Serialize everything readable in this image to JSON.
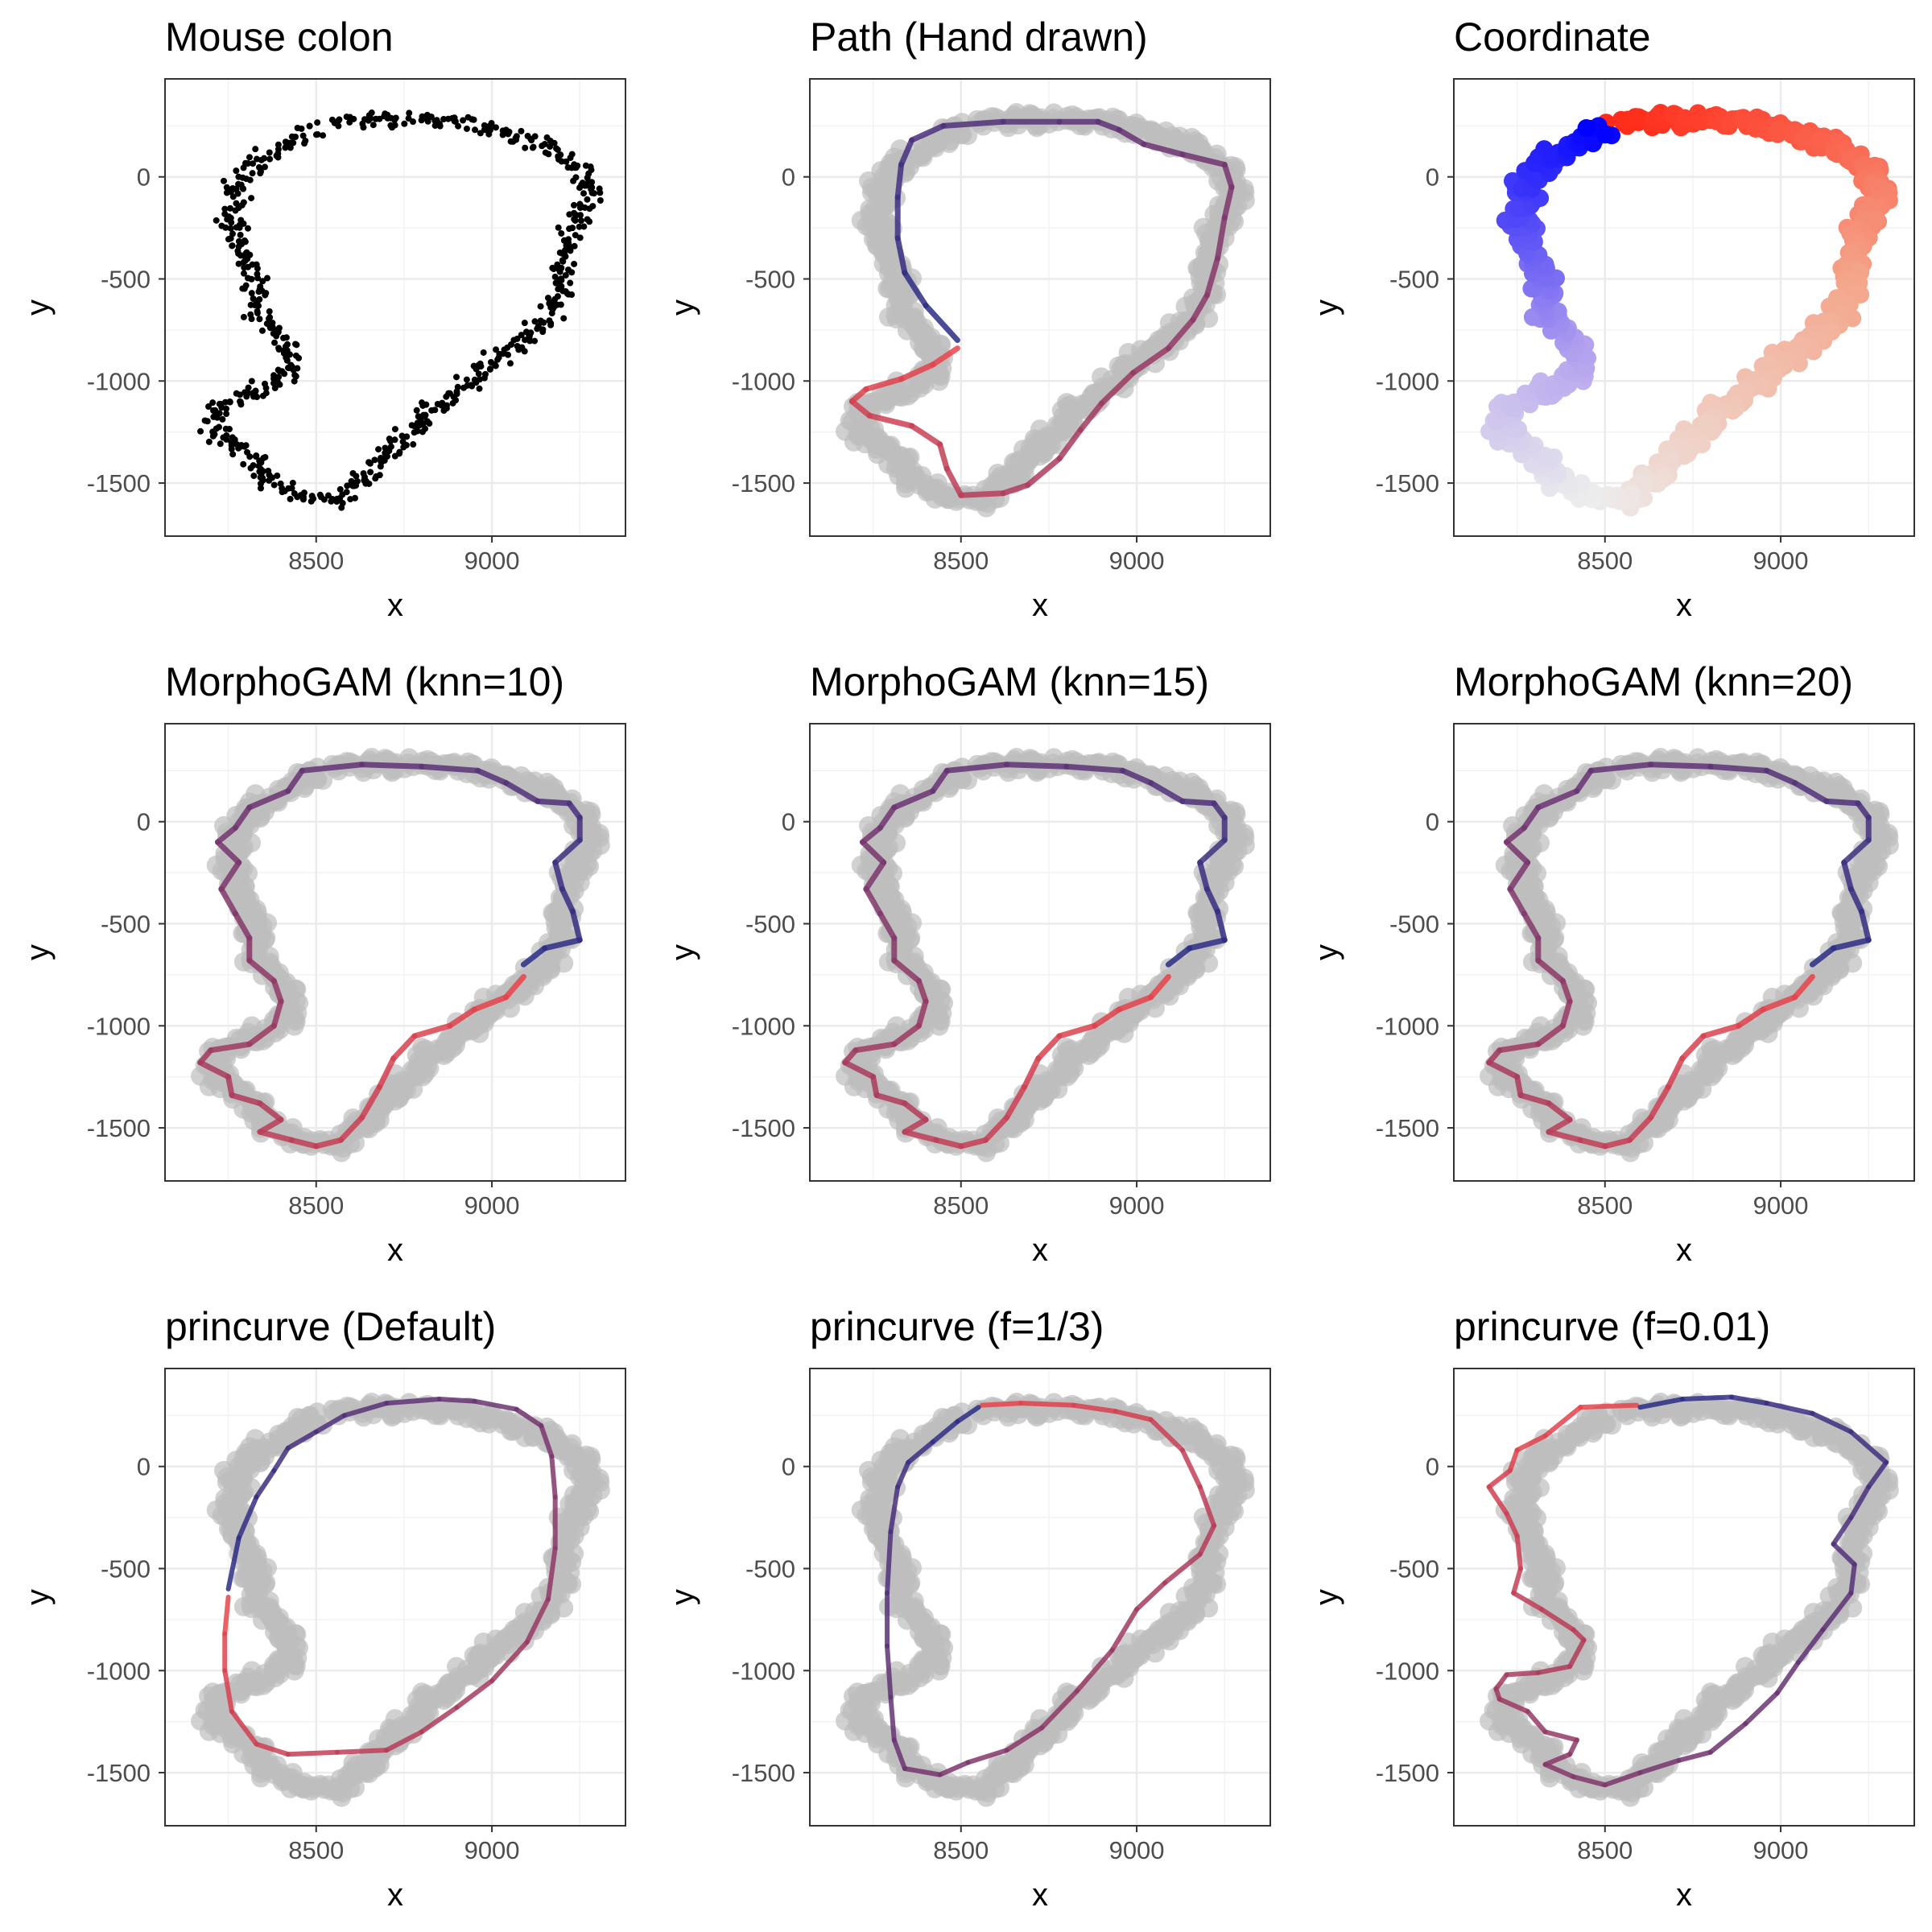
{
  "chart_data": [
    {
      "type": "scatter",
      "title": "Mouse colon",
      "xlabel": "x",
      "ylabel": "y",
      "xlim": [
        8070,
        9380
      ],
      "ylim": [
        -1760,
        480
      ],
      "x_ticks": [
        "8500",
        "9000"
      ],
      "y_ticks": [
        "0",
        "-500",
        "-1000",
        "-1500"
      ],
      "grid": true,
      "series": [
        {
          "kind": "points",
          "color": "#000000",
          "shape": "colon_band"
        }
      ]
    },
    {
      "type": "line",
      "title": "Path (Hand drawn)",
      "xlabel": "x",
      "ylabel": "y",
      "xlim": [
        8070,
        9380
      ],
      "ylim": [
        -1760,
        480
      ],
      "x_ticks": [
        "8500",
        "9000"
      ],
      "y_ticks": [
        "0",
        "-500",
        "-1000",
        "-1500"
      ],
      "grid": true,
      "background_points_color": "#bdbdbd",
      "path_color_start": "#e8434a",
      "path_color_end": "#2b2d86",
      "path": [
        [
          8490,
          -840
        ],
        [
          8420,
          -920
        ],
        [
          8330,
          -990
        ],
        [
          8230,
          -1040
        ],
        [
          8190,
          -1100
        ],
        [
          8240,
          -1170
        ],
        [
          8360,
          -1220
        ],
        [
          8440,
          -1310
        ],
        [
          8460,
          -1430
        ],
        [
          8500,
          -1560
        ],
        [
          8620,
          -1550
        ],
        [
          8690,
          -1510
        ],
        [
          8780,
          -1380
        ],
        [
          8840,
          -1240
        ],
        [
          8900,
          -1110
        ],
        [
          8990,
          -960
        ],
        [
          9090,
          -840
        ],
        [
          9160,
          -700
        ],
        [
          9200,
          -580
        ],
        [
          9230,
          -400
        ],
        [
          9250,
          -200
        ],
        [
          9270,
          -50
        ],
        [
          9250,
          60
        ],
        [
          9130,
          110
        ],
        [
          9020,
          160
        ],
        [
          8950,
          230
        ],
        [
          8890,
          270
        ],
        [
          8780,
          270
        ],
        [
          8620,
          270
        ],
        [
          8450,
          250
        ],
        [
          8360,
          180
        ],
        [
          8330,
          60
        ],
        [
          8320,
          -100
        ],
        [
          8320,
          -300
        ],
        [
          8340,
          -470
        ],
        [
          8400,
          -630
        ],
        [
          8490,
          -800
        ]
      ]
    },
    {
      "type": "scatter",
      "title": "Coordinate",
      "xlabel": "x",
      "ylabel": "y",
      "xlim": [
        8070,
        9380
      ],
      "ylim": [
        -1760,
        480
      ],
      "x_ticks": [
        "8500",
        "9000"
      ],
      "y_ticks": [
        "0",
        "-500",
        "-1000",
        "-1500"
      ],
      "grid": true,
      "color_scale": [
        "#ff2a18",
        "#f4a58a",
        "#ededed",
        "#b3a1ee",
        "#0000ff"
      ]
    },
    {
      "type": "line",
      "title": "MorphoGAM (knn=10)",
      "xlabel": "x",
      "ylabel": "y",
      "xlim": [
        8070,
        9380
      ],
      "ylim": [
        -1760,
        480
      ],
      "x_ticks": [
        "8500",
        "9000"
      ],
      "y_ticks": [
        "0",
        "-500",
        "-1000",
        "-1500"
      ],
      "grid": true,
      "background_points_color": "#bdbdbd",
      "path_color_start": "#e8434a",
      "path_color_end": "#2b2d86",
      "path": [
        [
          9090,
          -760
        ],
        [
          9040,
          -860
        ],
        [
          8950,
          -920
        ],
        [
          8880,
          -1000
        ],
        [
          8780,
          -1050
        ],
        [
          8720,
          -1160
        ],
        [
          8680,
          -1300
        ],
        [
          8630,
          -1450
        ],
        [
          8570,
          -1560
        ],
        [
          8500,
          -1590
        ],
        [
          8430,
          -1560
        ],
        [
          8340,
          -1520
        ],
        [
          8400,
          -1460
        ],
        [
          8340,
          -1380
        ],
        [
          8260,
          -1340
        ],
        [
          8250,
          -1250
        ],
        [
          8170,
          -1180
        ],
        [
          8200,
          -1120
        ],
        [
          8310,
          -1090
        ],
        [
          8380,
          -1000
        ],
        [
          8400,
          -880
        ],
        [
          8380,
          -780
        ],
        [
          8310,
          -680
        ],
        [
          8310,
          -570
        ],
        [
          8270,
          -450
        ],
        [
          8230,
          -330
        ],
        [
          8280,
          -200
        ],
        [
          8220,
          -100
        ],
        [
          8270,
          -30
        ],
        [
          8310,
          70
        ],
        [
          8420,
          150
        ],
        [
          8460,
          250
        ],
        [
          8630,
          280
        ],
        [
          8800,
          270
        ],
        [
          8960,
          250
        ],
        [
          9040,
          190
        ],
        [
          9130,
          100
        ],
        [
          9220,
          90
        ],
        [
          9250,
          20
        ],
        [
          9250,
          -90
        ],
        [
          9180,
          -200
        ],
        [
          9200,
          -330
        ],
        [
          9230,
          -440
        ],
        [
          9250,
          -580
        ],
        [
          9150,
          -620
        ],
        [
          9090,
          -700
        ]
      ]
    },
    {
      "type": "line",
      "title": "MorphoGAM (knn=15)",
      "xlabel": "x",
      "ylabel": "y",
      "xlim": [
        8070,
        9380
      ],
      "ylim": [
        -1760,
        480
      ],
      "x_ticks": [
        "8500",
        "9000"
      ],
      "y_ticks": [
        "0",
        "-500",
        "-1000",
        "-1500"
      ],
      "grid": true,
      "background_points_color": "#bdbdbd",
      "path_color_start": "#e8434a",
      "path_color_end": "#2b2d86",
      "path": [
        [
          9090,
          -760
        ],
        [
          9040,
          -860
        ],
        [
          8950,
          -920
        ],
        [
          8880,
          -1000
        ],
        [
          8780,
          -1050
        ],
        [
          8720,
          -1160
        ],
        [
          8680,
          -1300
        ],
        [
          8630,
          -1450
        ],
        [
          8570,
          -1560
        ],
        [
          8500,
          -1590
        ],
        [
          8430,
          -1560
        ],
        [
          8340,
          -1520
        ],
        [
          8400,
          -1460
        ],
        [
          8340,
          -1380
        ],
        [
          8260,
          -1340
        ],
        [
          8250,
          -1250
        ],
        [
          8170,
          -1180
        ],
        [
          8200,
          -1120
        ],
        [
          8310,
          -1090
        ],
        [
          8380,
          -1000
        ],
        [
          8400,
          -880
        ],
        [
          8380,
          -780
        ],
        [
          8310,
          -680
        ],
        [
          8310,
          -570
        ],
        [
          8270,
          -450
        ],
        [
          8230,
          -330
        ],
        [
          8280,
          -200
        ],
        [
          8220,
          -100
        ],
        [
          8270,
          -30
        ],
        [
          8310,
          70
        ],
        [
          8420,
          150
        ],
        [
          8460,
          250
        ],
        [
          8630,
          280
        ],
        [
          8800,
          270
        ],
        [
          8960,
          250
        ],
        [
          9040,
          190
        ],
        [
          9130,
          100
        ],
        [
          9220,
          90
        ],
        [
          9250,
          20
        ],
        [
          9250,
          -90
        ],
        [
          9180,
          -200
        ],
        [
          9200,
          -330
        ],
        [
          9230,
          -440
        ],
        [
          9250,
          -580
        ],
        [
          9150,
          -620
        ],
        [
          9090,
          -700
        ]
      ]
    },
    {
      "type": "line",
      "title": "MorphoGAM (knn=20)",
      "xlabel": "x",
      "ylabel": "y",
      "xlim": [
        8070,
        9380
      ],
      "ylim": [
        -1760,
        480
      ],
      "x_ticks": [
        "8500",
        "9000"
      ],
      "y_ticks": [
        "0",
        "-500",
        "-1000",
        "-1500"
      ],
      "grid": true,
      "background_points_color": "#bdbdbd",
      "path_color_start": "#e8434a",
      "path_color_end": "#2b2d86",
      "path": [
        [
          9090,
          -760
        ],
        [
          9040,
          -860
        ],
        [
          8950,
          -920
        ],
        [
          8880,
          -1000
        ],
        [
          8780,
          -1050
        ],
        [
          8720,
          -1160
        ],
        [
          8680,
          -1300
        ],
        [
          8630,
          -1450
        ],
        [
          8570,
          -1560
        ],
        [
          8500,
          -1590
        ],
        [
          8430,
          -1560
        ],
        [
          8340,
          -1520
        ],
        [
          8400,
          -1460
        ],
        [
          8340,
          -1380
        ],
        [
          8260,
          -1340
        ],
        [
          8250,
          -1250
        ],
        [
          8170,
          -1180
        ],
        [
          8200,
          -1120
        ],
        [
          8310,
          -1090
        ],
        [
          8380,
          -1000
        ],
        [
          8400,
          -880
        ],
        [
          8380,
          -780
        ],
        [
          8310,
          -680
        ],
        [
          8310,
          -570
        ],
        [
          8270,
          -450
        ],
        [
          8230,
          -330
        ],
        [
          8280,
          -200
        ],
        [
          8220,
          -100
        ],
        [
          8270,
          -30
        ],
        [
          8310,
          70
        ],
        [
          8420,
          150
        ],
        [
          8460,
          250
        ],
        [
          8630,
          280
        ],
        [
          8800,
          270
        ],
        [
          8960,
          250
        ],
        [
          9040,
          190
        ],
        [
          9130,
          100
        ],
        [
          9220,
          90
        ],
        [
          9250,
          20
        ],
        [
          9250,
          -90
        ],
        [
          9180,
          -200
        ],
        [
          9200,
          -330
        ],
        [
          9230,
          -440
        ],
        [
          9250,
          -580
        ],
        [
          9150,
          -620
        ],
        [
          9090,
          -700
        ]
      ]
    },
    {
      "type": "line",
      "title": "princurve (Default)",
      "xlabel": "x",
      "ylabel": "y",
      "xlim": [
        8070,
        9380
      ],
      "ylim": [
        -1760,
        480
      ],
      "x_ticks": [
        "8500",
        "9000"
      ],
      "y_ticks": [
        "0",
        "-500",
        "-1000",
        "-1500"
      ],
      "grid": true,
      "background_points_color": "#bdbdbd",
      "path_color_start": "#e8434a",
      "path_color_end": "#2b2d86",
      "path": [
        [
          8250,
          -640
        ],
        [
          8240,
          -820
        ],
        [
          8240,
          -1000
        ],
        [
          8260,
          -1200
        ],
        [
          8330,
          -1360
        ],
        [
          8420,
          -1410
        ],
        [
          8560,
          -1400
        ],
        [
          8700,
          -1390
        ],
        [
          8800,
          -1300
        ],
        [
          8900,
          -1180
        ],
        [
          9000,
          -1050
        ],
        [
          9100,
          -860
        ],
        [
          9160,
          -650
        ],
        [
          9180,
          -400
        ],
        [
          9180,
          -150
        ],
        [
          9170,
          50
        ],
        [
          9140,
          200
        ],
        [
          9070,
          280
        ],
        [
          8950,
          320
        ],
        [
          8850,
          330
        ],
        [
          8700,
          310
        ],
        [
          8580,
          250
        ],
        [
          8500,
          170
        ],
        [
          8420,
          90
        ],
        [
          8380,
          -20
        ],
        [
          8330,
          -150
        ],
        [
          8280,
          -350
        ],
        [
          8250,
          -600
        ]
      ]
    },
    {
      "type": "line",
      "title": "princurve (f=1/3)",
      "xlabel": "x",
      "ylabel": "y",
      "xlim": [
        8070,
        9380
      ],
      "ylim": [
        -1760,
        480
      ],
      "x_ticks": [
        "8500",
        "9000"
      ],
      "y_ticks": [
        "0",
        "-500",
        "-1000",
        "-1500"
      ],
      "grid": true,
      "background_points_color": "#bdbdbd",
      "path_color_start": "#e8434a",
      "path_color_end": "#2b2d86",
      "path": [
        [
          8560,
          300
        ],
        [
          8670,
          310
        ],
        [
          8820,
          300
        ],
        [
          8940,
          270
        ],
        [
          9040,
          230
        ],
        [
          9130,
          80
        ],
        [
          9180,
          -100
        ],
        [
          9220,
          -290
        ],
        [
          9180,
          -430
        ],
        [
          9080,
          -570
        ],
        [
          9000,
          -700
        ],
        [
          8930,
          -900
        ],
        [
          8830,
          -1100
        ],
        [
          8730,
          -1280
        ],
        [
          8630,
          -1390
        ],
        [
          8520,
          -1450
        ],
        [
          8440,
          -1510
        ],
        [
          8340,
          -1480
        ],
        [
          8310,
          -1340
        ],
        [
          8300,
          -1130
        ],
        [
          8290,
          -880
        ],
        [
          8290,
          -620
        ],
        [
          8300,
          -320
        ],
        [
          8320,
          -100
        ],
        [
          8350,
          20
        ],
        [
          8420,
          120
        ],
        [
          8490,
          220
        ],
        [
          8550,
          290
        ]
      ]
    },
    {
      "type": "line",
      "title": "princurve (f=0.01)",
      "xlabel": "x",
      "ylabel": "y",
      "xlim": [
        8070,
        9380
      ],
      "ylim": [
        -1760,
        480
      ],
      "x_ticks": [
        "8500",
        "9000"
      ],
      "y_ticks": [
        "0",
        "-500",
        "-1000",
        "-1500"
      ],
      "grid": true,
      "background_points_color": "#bdbdbd",
      "path_color_start": "#e8434a",
      "path_color_end": "#2b2d86",
      "path": [
        [
          8590,
          300
        ],
        [
          8430,
          290
        ],
        [
          8330,
          150
        ],
        [
          8250,
          80
        ],
        [
          8230,
          -20
        ],
        [
          8170,
          -100
        ],
        [
          8220,
          -230
        ],
        [
          8250,
          -340
        ],
        [
          8260,
          -500
        ],
        [
          8240,
          -620
        ],
        [
          8320,
          -700
        ],
        [
          8410,
          -800
        ],
        [
          8440,
          -850
        ],
        [
          8400,
          -980
        ],
        [
          8310,
          -1010
        ],
        [
          8220,
          -1020
        ],
        [
          8190,
          -1090
        ],
        [
          8200,
          -1140
        ],
        [
          8280,
          -1200
        ],
        [
          8330,
          -1300
        ],
        [
          8420,
          -1340
        ],
        [
          8400,
          -1410
        ],
        [
          8330,
          -1460
        ],
        [
          8410,
          -1520
        ],
        [
          8500,
          -1560
        ],
        [
          8600,
          -1500
        ],
        [
          8710,
          -1440
        ],
        [
          8800,
          -1400
        ],
        [
          8900,
          -1260
        ],
        [
          8990,
          -1110
        ],
        [
          9050,
          -960
        ],
        [
          9120,
          -800
        ],
        [
          9200,
          -620
        ],
        [
          9210,
          -480
        ],
        [
          9150,
          -380
        ],
        [
          9200,
          -250
        ],
        [
          9250,
          -100
        ],
        [
          9300,
          20
        ],
        [
          9200,
          170
        ],
        [
          9090,
          260
        ],
        [
          8960,
          310
        ],
        [
          8860,
          340
        ],
        [
          8720,
          330
        ],
        [
          8600,
          290
        ]
      ]
    }
  ]
}
